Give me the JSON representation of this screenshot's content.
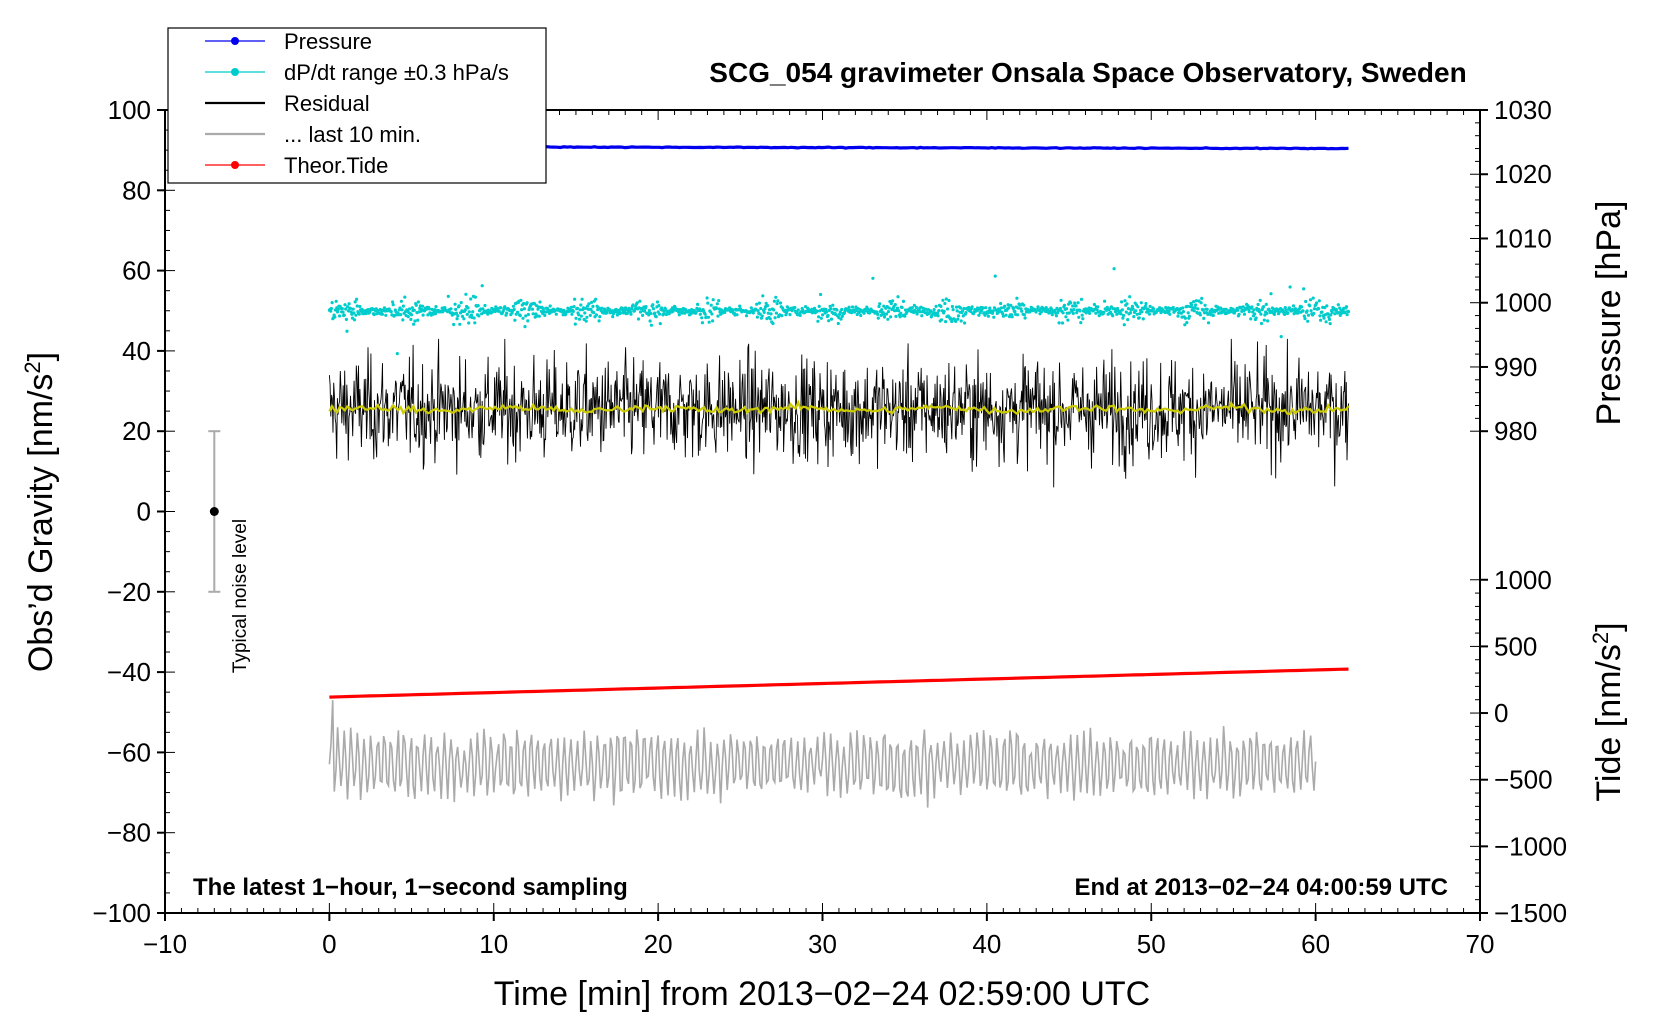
{
  "chart_data": {
    "type": "line",
    "title": "SCG_054 gravimeter Onsala Space Observatory, Sweden",
    "xlabel": "Time [min] from 2013−02−24 02:59:00 UTC",
    "ylabel": "Obs’d Gravity [nm/s²]",
    "ylabel_main": "Obs’d Gravity [nm/s",
    "ylabel_sup": "2",
    "ylabel_end": "]",
    "xlim": [
      -10,
      70
    ],
    "ylim": [
      -100,
      100
    ],
    "x_ticks": [
      "−10",
      "0",
      "10",
      "20",
      "30",
      "40",
      "50",
      "60",
      "70"
    ],
    "y_ticks": [
      "100",
      "80",
      "60",
      "40",
      "20",
      "0",
      "−20",
      "−40",
      "−60",
      "−80",
      "−100"
    ],
    "pressure_axis": {
      "label": "Pressure [hPa]",
      "ticks": [
        "1030",
        "1020",
        "1010",
        "1000",
        "990",
        "980"
      ],
      "range": [
        980,
        1030
      ]
    },
    "tide_axis": {
      "label_main": "Tide [nm/s",
      "label_sup": "2",
      "label_end": "]",
      "ticks": [
        "1000",
        "500",
        "0",
        "−500",
        "−1000",
        "−1500"
      ],
      "range": [
        -1500,
        1000
      ]
    },
    "series": [
      {
        "name": "Pressure",
        "color": "#0000ee",
        "unit": "hPa",
        "x_range": [
          0,
          62
        ],
        "start_value": 1024.3,
        "end_value": 1024.0
      },
      {
        "name": "dP/dt range ±0.3 hPa/s",
        "color": "#00cccc",
        "center_value": 50,
        "x_range": [
          0,
          62
        ]
      },
      {
        "name": "Residual",
        "color": "#000000",
        "mean_value": 25.5,
        "range": [
          6,
          43
        ],
        "x_range": [
          0,
          62
        ]
      },
      {
        "name": "... last 10 min.",
        "color": "#aaaaaa",
        "mean_value": -63,
        "range": [
          -75,
          -44
        ],
        "x_range": [
          0,
          60
        ]
      },
      {
        "name": "Theor.Tide",
        "color": "#ff0000",
        "unit": "nm/s²",
        "x_range": [
          0,
          62
        ],
        "start_value": 120,
        "end_value": 330
      }
    ],
    "smoothed_residual": {
      "color": "#cccc00",
      "mean_value": 25.5
    },
    "noise_indicator": {
      "label": "Typical noise level",
      "x": -7,
      "center": 0,
      "range": [
        -20,
        20
      ]
    },
    "notes": {
      "left": "The latest 1−hour, 1−second sampling",
      "right": "End at 2013−02−24 04:00:59 UTC"
    }
  }
}
